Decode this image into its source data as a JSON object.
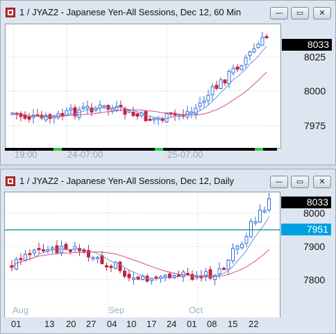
{
  "window1": {
    "title": "1 / JYAZ2 - Japanese Yen-All Sessions, Dec 12, 60 Min",
    "buttons": {
      "minimize": "—",
      "restore": "▭",
      "close": "✕"
    },
    "y_ticks": [
      "8025",
      "8000",
      "7975"
    ],
    "last_price": "8033",
    "x_labels": [
      "19:00",
      "24-07:00",
      "25-07:00"
    ]
  },
  "window2": {
    "title": "1 / JYAZ2 - Japanese Yen-All Sessions, Dec 12, Daily",
    "buttons": {
      "minimize": "—",
      "restore": "▭",
      "close": "✕"
    },
    "y_ticks": [
      "8000",
      "7900",
      "7800"
    ],
    "last_price": "8033",
    "level_price": "7951",
    "month_labels": [
      "Aug",
      "Sep",
      "Oct"
    ],
    "day_labels": [
      "01",
      "13",
      "20",
      "27",
      "04",
      "10",
      "17",
      "24",
      "01",
      "08",
      "15",
      "22"
    ]
  },
  "colors": {
    "up": "#2f6fd6",
    "down": "#c3233a",
    "ma_fast": "#6b8fd6",
    "ma_slow": "#d64a8f",
    "level": "#008b8b"
  }
}
